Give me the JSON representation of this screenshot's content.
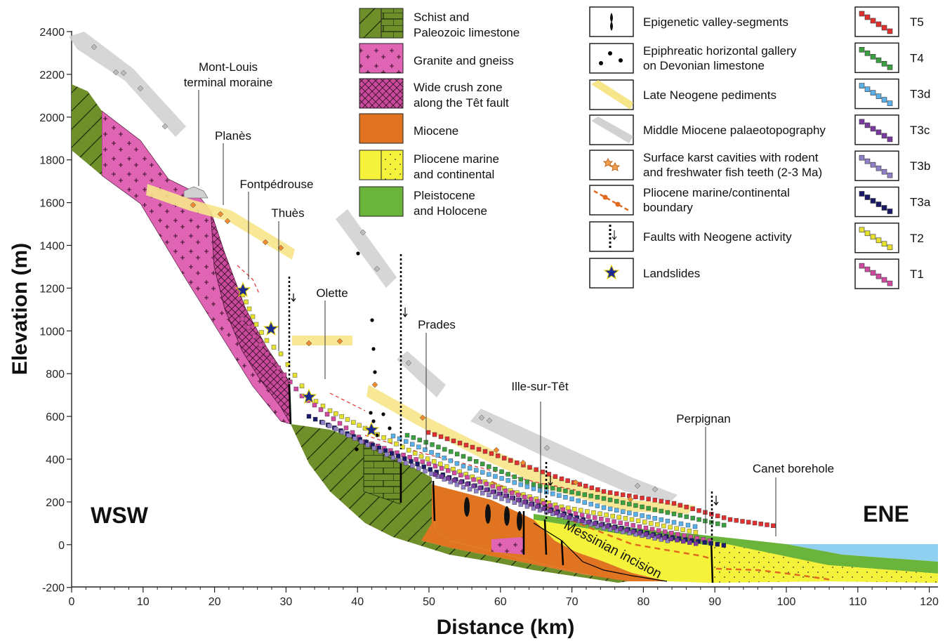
{
  "axes": {
    "xlabel": "Distance (km)",
    "ylabel": "Elevation (m)",
    "xticks": [
      "0",
      "10",
      "20",
      "30",
      "40",
      "50",
      "60",
      "70",
      "80",
      "90",
      "100",
      "110",
      "120"
    ],
    "yticks": [
      "2400",
      "2200",
      "2000",
      "1800",
      "1600",
      "1400",
      "1200",
      "1000",
      "800",
      "600",
      "400",
      "200",
      "0",
      "-200"
    ]
  },
  "orientation": {
    "west": "WSW",
    "east": "ENE"
  },
  "places": {
    "mont_louis_1": "Mont-Louis",
    "mont_louis_2": "terminal moraine",
    "planes": "Planès",
    "fontpedrouse": "Fontpédrouse",
    "thues": "Thuès",
    "olette": "Olette",
    "prades": "Prades",
    "ille": "Ille-sur-Têt",
    "perpignan": "Perpignan",
    "canet": "Canet borehole",
    "messinian": "Messinian incision"
  },
  "legend_units": [
    {
      "l1": "Schist and",
      "l2": "Paleozoic limestone"
    },
    {
      "l1": "Granite and gneiss",
      "l2": ""
    },
    {
      "l1": "Wide crush zone",
      "l2": "along the Têt fault"
    },
    {
      "l1": "Miocene",
      "l2": ""
    },
    {
      "l1": "Pliocene marine",
      "l2": "and continental"
    },
    {
      "l1": "Pleistocene",
      "l2": "and Holocene"
    }
  ],
  "legend_features": [
    {
      "l1": "Epigenetic valley-segments",
      "l2": ""
    },
    {
      "l1": "Epiphreatic horizontal gallery",
      "l2": "on Devonian limestone"
    },
    {
      "l1": "Late Neogene pediments",
      "l2": ""
    },
    {
      "l1": "Middle Miocene palaeotopography",
      "l2": ""
    },
    {
      "l1": "Surface karst cavities with rodent",
      "l2": "and freshwater fish teeth (2-3 Ma)"
    },
    {
      "l1": "Pliocene marine/continental",
      "l2": "boundary"
    },
    {
      "l1": "Faults with Neogene activity",
      "l2": ""
    },
    {
      "l1": "Landslides",
      "l2": ""
    }
  ],
  "legend_terraces": [
    "T5",
    "T4",
    "T3d",
    "T3c",
    "T3b",
    "T3a",
    "T2",
    "T1"
  ],
  "colors": {
    "schist": "#6f8f2a",
    "granite": "#e064b4",
    "crush": "#c84a9a",
    "miocene": "#e07420",
    "pliocene": "#f4f23a",
    "pleistocene": "#6bb43c",
    "sea": "#8fd0f0",
    "pediment": "#f7e58a",
    "palaeotopo": "#d2d2d2",
    "T5": "#e03030",
    "T4": "#3aa040",
    "T3d": "#5ab0e8",
    "T3c": "#7a3aa0",
    "T3b": "#9080c8",
    "T3a": "#1a1a6a",
    "T2": "#e6e030",
    "T1": "#d04aa0"
  }
}
